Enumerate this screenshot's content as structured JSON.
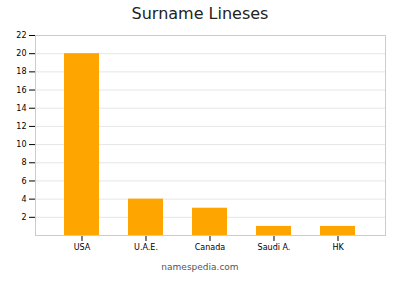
{
  "chart_data": {
    "type": "bar",
    "title": "Surname Lineses",
    "categories": [
      "USA",
      "U.A.E.",
      "Canada",
      "Saudi A.",
      "HK"
    ],
    "values": [
      20,
      4,
      3,
      1,
      1
    ],
    "color": "#FFA500",
    "ylim": [
      0,
      22
    ],
    "yticks": [
      2,
      4,
      6,
      8,
      10,
      12,
      14,
      16,
      18,
      20,
      22
    ],
    "grid": true,
    "annotations": [
      "namespedia.com"
    ]
  }
}
